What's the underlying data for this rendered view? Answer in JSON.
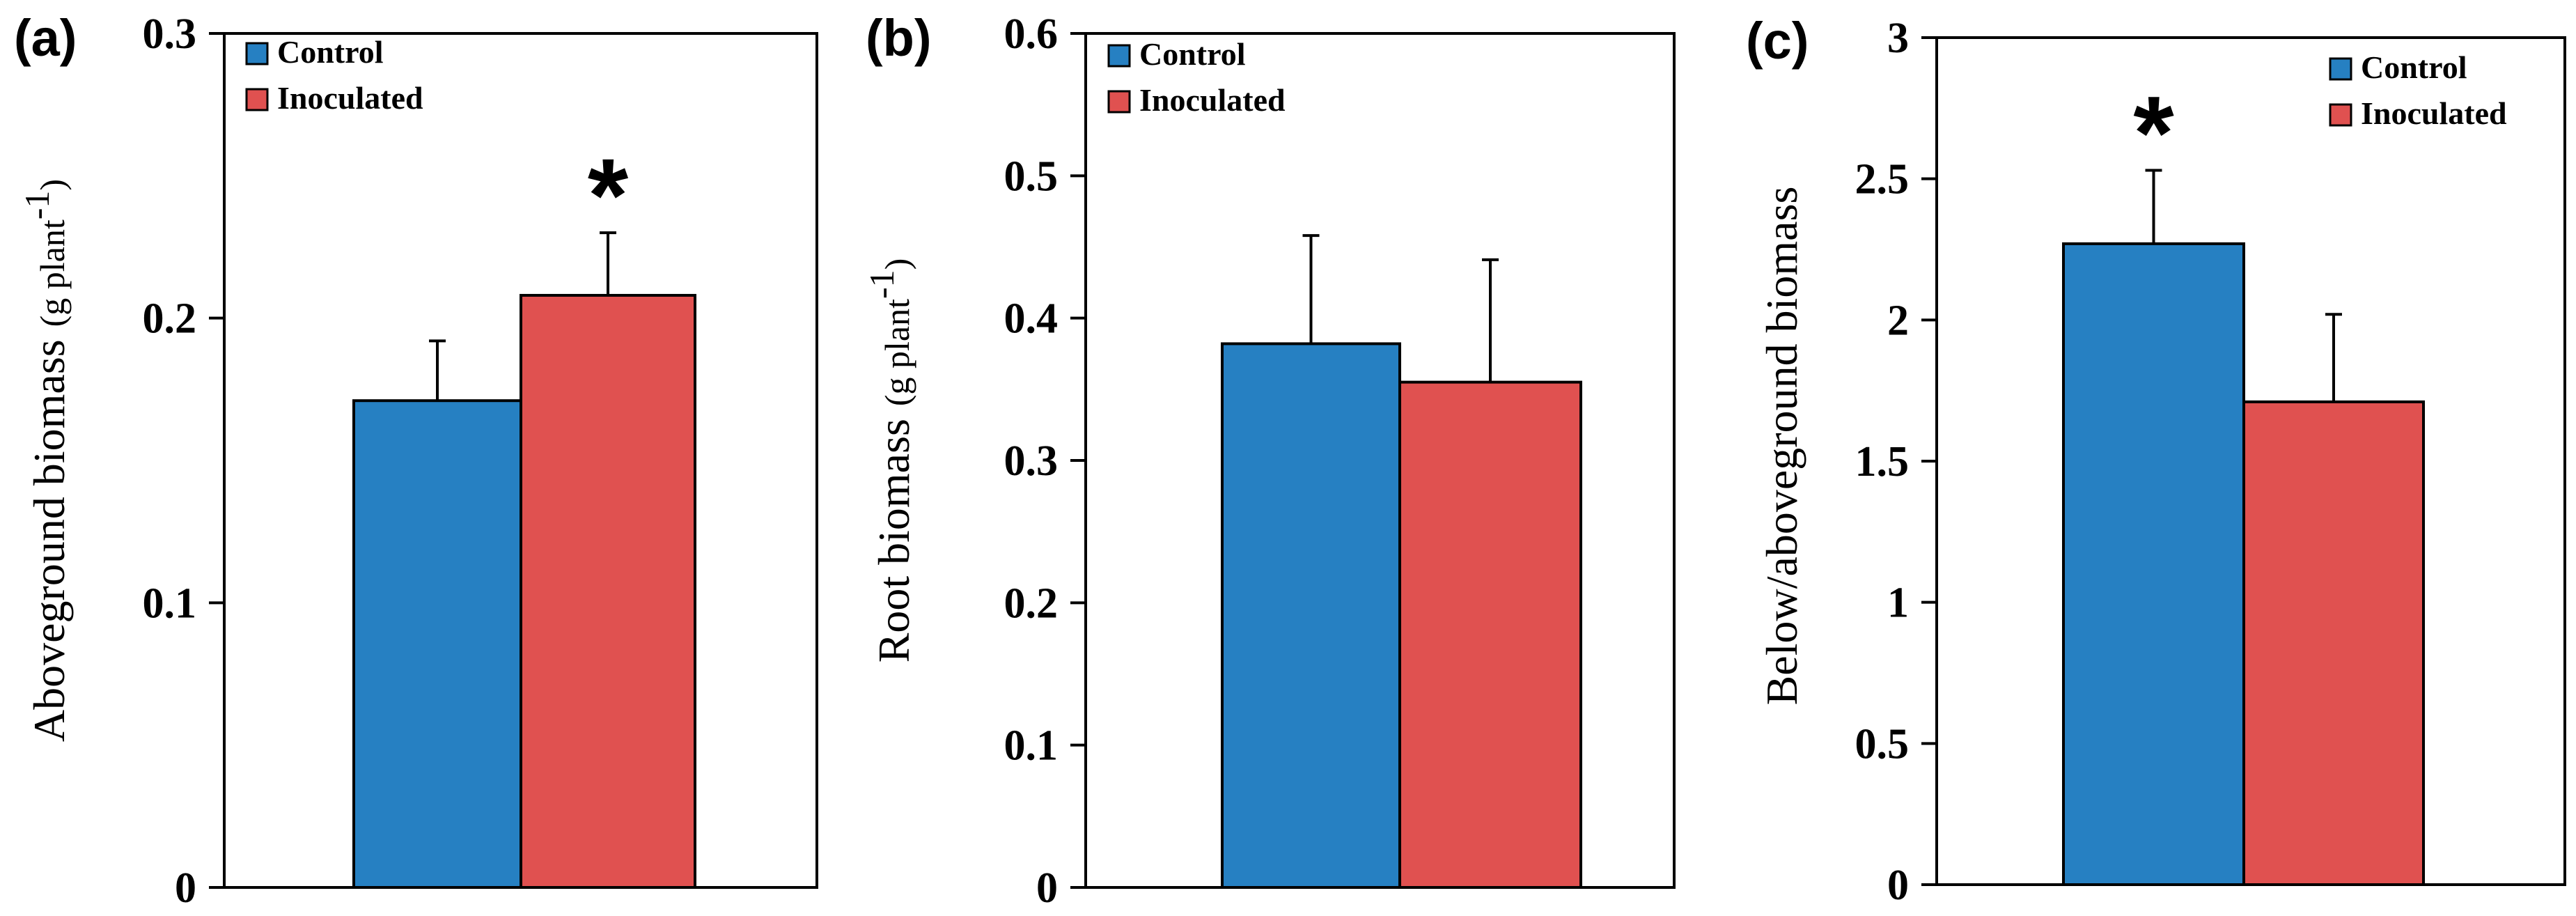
{
  "chart_data": [
    {
      "type": "bar",
      "panel_label": "(a)",
      "categories": [
        "Control",
        "Inoculated"
      ],
      "values": [
        0.171,
        0.208
      ],
      "errors": [
        0.021,
        0.022
      ],
      "significance": [
        "",
        "*"
      ],
      "ylabel_main": "Aboveground  biomass",
      "ylabel_unit": "(g plant",
      "ylabel_sup": "-1",
      "ylabel_close": ")",
      "ylim": [
        0,
        0.3
      ],
      "yticks": [
        0,
        0.1,
        0.2,
        0.3
      ],
      "ytick_labels": [
        "0",
        "0.1",
        "0.2",
        "0.3"
      ],
      "legend": [
        "Control",
        "Inoculated"
      ],
      "legend_position": "top-left",
      "colors": [
        "#2680C2",
        "#E05150"
      ]
    },
    {
      "type": "bar",
      "panel_label": "(b)",
      "categories": [
        "Control",
        "Inoculated"
      ],
      "values": [
        0.382,
        0.355
      ],
      "errors": [
        0.076,
        0.086
      ],
      "significance": [
        "",
        ""
      ],
      "ylabel_main": "Root  biomass",
      "ylabel_unit": "(g plant",
      "ylabel_sup": "-1",
      "ylabel_close": ")",
      "ylim": [
        0,
        0.6
      ],
      "yticks": [
        0,
        0.1,
        0.2,
        0.3,
        0.4,
        0.5,
        0.6
      ],
      "ytick_labels": [
        "0",
        "0.1",
        "0.2",
        "0.3",
        "0.4",
        "0.5",
        "0.6"
      ],
      "legend": [
        "Control",
        "Inoculated"
      ],
      "legend_position": "top-left",
      "colors": [
        "#2680C2",
        "#E05150"
      ]
    },
    {
      "type": "bar",
      "panel_label": "(c)",
      "categories": [
        "Control",
        "Inoculated"
      ],
      "values": [
        2.27,
        1.71
      ],
      "errors": [
        0.26,
        0.31
      ],
      "significance": [
        "*",
        ""
      ],
      "ylabel_main": "Below/aboveground biomass",
      "ylabel_unit": "",
      "ylabel_sup": "",
      "ylabel_close": "",
      "ylim": [
        0,
        3
      ],
      "yticks": [
        0,
        0.5,
        1,
        1.5,
        2,
        2.5,
        3
      ],
      "ytick_labels": [
        "0",
        "0.5",
        "1",
        "1.5",
        "2",
        "2.5",
        "3"
      ],
      "legend": [
        "Control",
        "Inoculated"
      ],
      "legend_position": "top-right",
      "colors": [
        "#2680C2",
        "#E05150"
      ]
    }
  ]
}
